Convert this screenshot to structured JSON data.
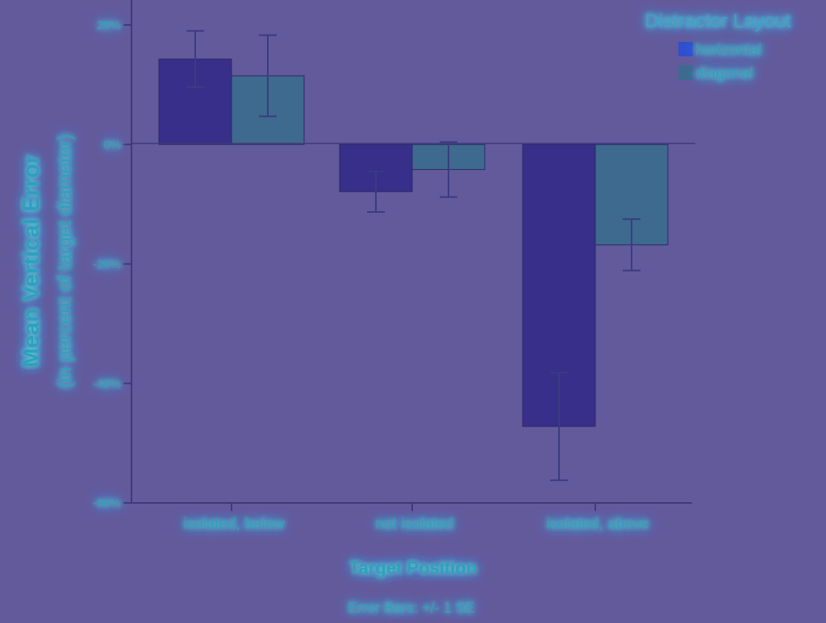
{
  "chart_data": {
    "type": "bar",
    "categories": [
      "isolated, below",
      "not isolated",
      "isolated, above"
    ],
    "series": [
      {
        "name": "horizontal",
        "values": [
          14.3,
          -7.9,
          -47.2
        ],
        "se": [
          4.7,
          3.4,
          9.0
        ]
      },
      {
        "name": "diagonal",
        "values": [
          11.5,
          -4.2,
          -16.8
        ],
        "se": [
          6.8,
          4.6,
          4.3
        ]
      }
    ],
    "ylim": [
      -60,
      20
    ],
    "yticks": [
      20,
      0,
      -20,
      -40,
      -60
    ],
    "ytick_labels": [
      "20%",
      "0%",
      "-20%",
      "-40%",
      "-60%"
    ],
    "ylabel": "Mean Vertical Error",
    "ylabel_sub": "(in percent of target diameter)",
    "xlabel": "Target Position",
    "note": "Error Bars: +/- 1 SE",
    "legend_title": "Distractor Layout",
    "legend_position": "top-right",
    "grid": false,
    "colors": {
      "background": "#635a9c",
      "horizontal": "#372f8a",
      "diagonal": "#3d6a8e",
      "axis": "#3e3a78",
      "error_bar": "#3a3c80",
      "text": "#2f9fc2",
      "text_bright": "#44b8d8",
      "legend_title": "#3aa0d0",
      "glow_inner": "#6cff7a",
      "glow_outer": "#3ab4ff"
    }
  }
}
